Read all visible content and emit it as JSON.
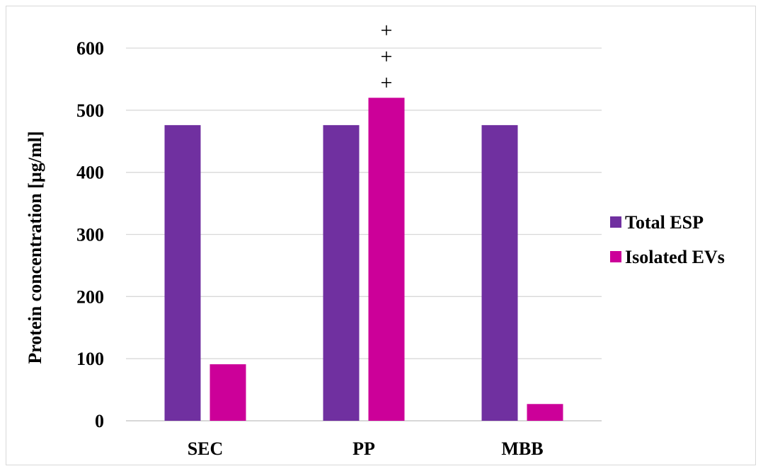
{
  "chart_data": {
    "type": "bar",
    "categories": [
      "SEC",
      "PP",
      "MBB"
    ],
    "series": [
      {
        "name": "Total ESP",
        "values": [
          476,
          476,
          476
        ],
        "color": "#7030a0"
      },
      {
        "name": "Isolated EVs",
        "values": [
          91,
          520,
          27
        ],
        "color": "#cc0099"
      }
    ],
    "ylabel": "Protein concentration [µg/ml]",
    "xlabel": "",
    "ylim": [
      0,
      600
    ],
    "yticks": [
      0,
      100,
      200,
      300,
      400,
      500,
      600
    ],
    "grid": true,
    "legend_position": "right",
    "annotations": [
      {
        "category": "PP",
        "series": "Isolated EVs",
        "text": [
          "+",
          "+",
          "+"
        ]
      }
    ]
  }
}
